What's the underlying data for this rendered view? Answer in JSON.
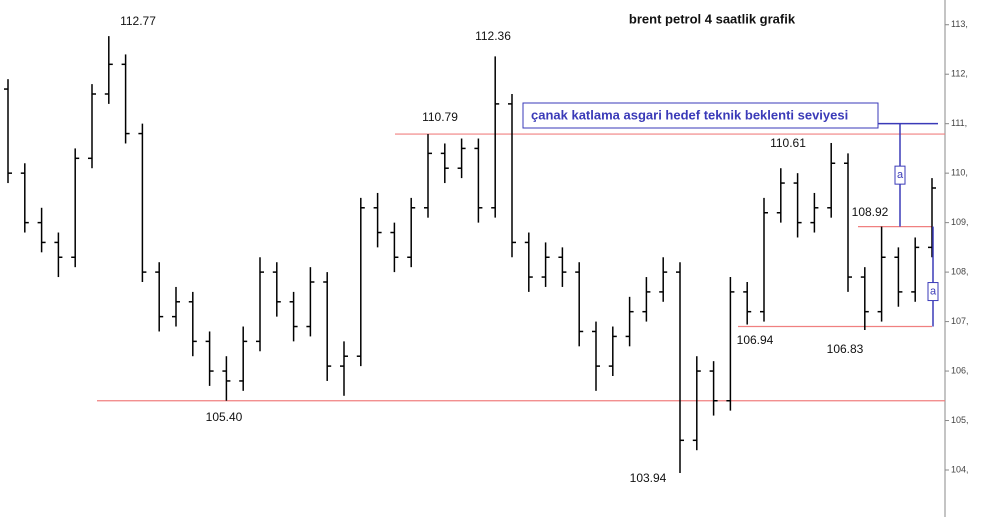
{
  "chart_data": {
    "type": "ohlc",
    "title": "brent petrol  4 saatlik grafik",
    "color": "#000000",
    "open": [
      111.7,
      110.0,
      109.0,
      108.6,
      108.3,
      110.3,
      111.6,
      112.2,
      110.8,
      108.0,
      107.1,
      107.4,
      106.6,
      106.0,
      105.8,
      106.6,
      108.0,
      107.4,
      106.9,
      107.8,
      106.1,
      106.3,
      109.3,
      108.8,
      108.3,
      109.3,
      110.4,
      110.1,
      110.5,
      109.3,
      111.4,
      108.6,
      107.9,
      108.3,
      108.0,
      106.8,
      106.1,
      106.7,
      107.2,
      107.6,
      108.0,
      104.6,
      106.0,
      105.4,
      107.6,
      107.2,
      109.2,
      109.8,
      109.0,
      109.3,
      110.2,
      107.9,
      107.2,
      108.3,
      107.6,
      108.5
    ],
    "high": [
      111.9,
      110.2,
      109.3,
      108.8,
      110.5,
      111.8,
      112.77,
      112.4,
      111.0,
      108.2,
      107.7,
      107.6,
      106.8,
      106.3,
      106.9,
      108.3,
      108.2,
      107.6,
      108.1,
      108.0,
      106.6,
      109.5,
      109.6,
      109.0,
      109.5,
      110.79,
      110.6,
      110.7,
      110.7,
      112.36,
      111.6,
      108.8,
      108.6,
      108.5,
      108.2,
      107.0,
      106.9,
      107.5,
      107.9,
      108.3,
      108.2,
      106.3,
      106.2,
      107.9,
      107.8,
      109.5,
      110.1,
      110.0,
      109.6,
      110.61,
      110.4,
      108.1,
      108.92,
      108.5,
      108.7,
      109.9
    ],
    "low": [
      109.8,
      108.8,
      108.4,
      107.9,
      108.1,
      110.1,
      111.4,
      110.6,
      107.8,
      106.8,
      106.9,
      106.3,
      105.7,
      105.4,
      105.6,
      106.4,
      107.1,
      106.6,
      106.7,
      105.8,
      105.5,
      106.1,
      108.5,
      108.0,
      108.1,
      109.1,
      109.8,
      109.9,
      109.0,
      109.1,
      108.3,
      107.6,
      107.7,
      107.7,
      106.5,
      105.6,
      105.9,
      106.5,
      107.0,
      107.4,
      103.94,
      104.4,
      105.1,
      105.2,
      106.94,
      107.0,
      109.0,
      108.7,
      108.8,
      109.1,
      107.6,
      106.83,
      107.0,
      107.3,
      107.4,
      108.3
    ],
    "close": [
      110.0,
      109.0,
      108.6,
      108.3,
      110.3,
      111.6,
      112.2,
      110.8,
      108.0,
      107.1,
      107.4,
      106.6,
      106.0,
      105.8,
      106.6,
      108.0,
      107.4,
      106.9,
      107.8,
      106.1,
      106.3,
      109.3,
      108.8,
      108.3,
      109.3,
      110.4,
      110.1,
      110.5,
      109.3,
      111.4,
      108.6,
      107.9,
      108.3,
      108.0,
      106.8,
      106.1,
      106.7,
      107.2,
      107.6,
      108.0,
      104.6,
      106.0,
      105.4,
      107.6,
      107.2,
      109.2,
      109.8,
      109.0,
      109.3,
      110.2,
      107.9,
      107.2,
      108.3,
      107.6,
      108.5,
      109.7
    ],
    "ylim": [
      103.05,
      113.5
    ],
    "yticks": [
      {
        "value": 104,
        "label": "104,"
      },
      {
        "value": 105,
        "label": "105,"
      },
      {
        "value": 106,
        "label": "106,"
      },
      {
        "value": 107,
        "label": "107,"
      },
      {
        "value": 108,
        "label": "108,"
      },
      {
        "value": 109,
        "label": "109,"
      },
      {
        "value": 110,
        "label": "110,"
      },
      {
        "value": 111,
        "label": "111,"
      },
      {
        "value": 112,
        "label": "112,"
      },
      {
        "value": 113,
        "label": "113,"
      }
    ],
    "annotations": [
      "112.77",
      "112.36",
      "110.79",
      "110.61",
      "108.92",
      "106.94",
      "106.83",
      "105.40",
      "103.94"
    ],
    "levels": [
      110.79,
      105.4,
      106.9,
      108.92
    ],
    "level_color": "#f08080",
    "target": 111.0,
    "target_color": "#3a3ab8",
    "callout": "çanak katlama asgari hedef teknik beklenti seviyesi",
    "bracket_label": "a"
  }
}
